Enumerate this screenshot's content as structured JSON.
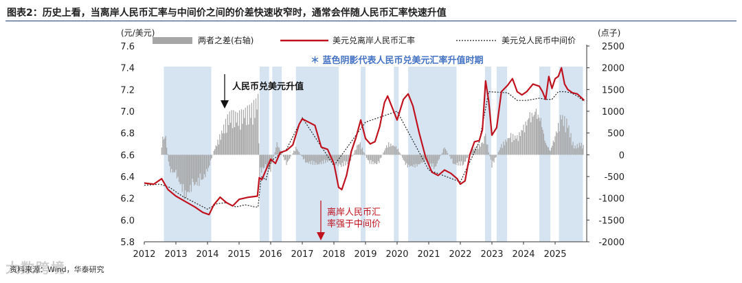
{
  "title": "图表2：历史上看，当离岸人民币汇率与中间价之间的价差快速收窄时，通常会伴随人民币汇率快速升值",
  "source": "资料来源：Wind，华泰研究",
  "watermark": "大数跨境",
  "colors": {
    "diff": "#a6a6a6",
    "offshore": "#c0121e",
    "central": "#222222",
    "shade": "#d6e4f2",
    "note": "#4472c4",
    "annot_red": "#c0121e"
  },
  "chart_data": {
    "type": "line",
    "title": "图表2：历史上看，当离岸人民币汇率与中间价之间的价差快速收窄时，通常会伴随人民币汇率快速升值",
    "ylabel_left": "(元/美元)",
    "ylabel_right": "(点子)",
    "ylim_left": [
      5.8,
      7.6
    ],
    "ylim_right": [
      -2000,
      2500
    ],
    "x_range": [
      2012,
      2026
    ],
    "xticks": [
      "2012",
      "2013",
      "2014",
      "2015",
      "2016",
      "2017",
      "2018",
      "2019",
      "2020",
      "2021",
      "2022",
      "2023",
      "2024",
      "2025"
    ],
    "yticks_left": [
      "7.6",
      "7.4",
      "7.2",
      "7.0",
      "6.8",
      "6.6",
      "6.4",
      "6.2",
      "6.0",
      "5.8"
    ],
    "yticks_right": [
      "2500",
      "2000",
      "1500",
      "1000",
      "500",
      "0",
      "-500",
      "-1000",
      "-1500",
      "-2000"
    ],
    "legend": [
      "两者之差(右轴)",
      "美元兑离岸人民币汇率",
      "美元兑人民币中间价"
    ],
    "note": "＊ 蓝色阴影代表人民币兑美元汇率升值时期",
    "annotations": [
      {
        "text": "人民币兑美元升值",
        "x": 2014.55,
        "y": 7.05,
        "color": "black"
      },
      {
        "text": "离岸人民币汇",
        "text2": "率强于中间价",
        "x": 2017.72,
        "y": 5.82,
        "color": "red"
      }
    ],
    "shaded_periods": [
      [
        2012.62,
        2014.12
      ],
      [
        2015.65,
        2015.95
      ],
      [
        2016.05,
        2016.35
      ],
      [
        2016.8,
        2018.15
      ],
      [
        2018.85,
        2019.0
      ],
      [
        2019.9,
        2020.05
      ],
      [
        2020.35,
        2021.88
      ],
      [
        2022.78,
        2022.98
      ],
      [
        2023.15,
        2023.48
      ],
      [
        2024.5,
        2024.85
      ],
      [
        2025.12,
        2025.88
      ]
    ],
    "series": [
      {
        "name": "美元兑离岸人民币汇率",
        "x": [
          2012.0,
          2012.3,
          2012.55,
          2012.75,
          2013.0,
          2013.3,
          2013.6,
          2013.85,
          2014.05,
          2014.2,
          2014.4,
          2014.6,
          2014.8,
          2015.0,
          2015.3,
          2015.58,
          2015.64,
          2015.72,
          2015.85,
          2016.0,
          2016.15,
          2016.3,
          2016.5,
          2016.7,
          2016.9,
          2017.0,
          2017.2,
          2017.4,
          2017.6,
          2017.8,
          2018.0,
          2018.15,
          2018.25,
          2018.4,
          2018.55,
          2018.7,
          2018.85,
          2019.0,
          2019.15,
          2019.3,
          2019.45,
          2019.6,
          2019.7,
          2019.85,
          2020.0,
          2020.2,
          2020.35,
          2020.5,
          2020.7,
          2020.9,
          2021.1,
          2021.3,
          2021.5,
          2021.7,
          2021.9,
          2022.0,
          2022.15,
          2022.3,
          2022.45,
          2022.6,
          2022.7,
          2022.8,
          2022.9,
          2023.0,
          2023.15,
          2023.3,
          2023.5,
          2023.65,
          2023.8,
          2023.95,
          2024.1,
          2024.3,
          2024.5,
          2024.6,
          2024.7,
          2024.8,
          2024.9,
          2025.0,
          2025.1,
          2025.2,
          2025.3,
          2025.4,
          2025.55,
          2025.7,
          2025.85,
          2025.92
        ],
        "values": [
          6.34,
          6.33,
          6.38,
          6.28,
          6.22,
          6.17,
          6.12,
          6.07,
          6.05,
          6.14,
          6.21,
          6.16,
          6.13,
          6.19,
          6.21,
          6.22,
          6.39,
          6.37,
          6.46,
          6.56,
          6.52,
          6.62,
          6.64,
          6.69,
          6.88,
          6.93,
          6.9,
          6.87,
          6.67,
          6.65,
          6.52,
          6.3,
          6.28,
          6.41,
          6.63,
          6.76,
          6.92,
          6.75,
          6.7,
          6.72,
          6.86,
          7.08,
          7.14,
          7.03,
          6.92,
          7.11,
          7.16,
          7.05,
          6.8,
          6.58,
          6.44,
          6.41,
          6.46,
          6.43,
          6.38,
          6.33,
          6.36,
          6.6,
          6.72,
          6.73,
          6.83,
          7.28,
          7.09,
          6.78,
          6.85,
          7.18,
          7.24,
          7.3,
          7.18,
          7.15,
          7.18,
          7.25,
          7.23,
          7.18,
          7.11,
          7.32,
          7.21,
          7.3,
          7.32,
          7.4,
          7.25,
          7.2,
          7.17,
          7.16,
          7.12,
          7.1
        ]
      },
      {
        "name": "美元兑人民币中间价",
        "x": [
          2012.0,
          2012.5,
          2012.8,
          2013.2,
          2013.6,
          2014.0,
          2014.3,
          2014.6,
          2014.9,
          2015.2,
          2015.5,
          2015.6,
          2015.64,
          2015.7,
          2015.85,
          2016.0,
          2016.5,
          2017.0,
          2018.0,
          2019.0,
          2020.0,
          2021.0,
          2022.0,
          2022.6,
          2022.9,
          2023.5,
          2023.8,
          2024.1,
          2024.5,
          2024.7,
          2024.9,
          2025.1,
          2025.3,
          2025.5,
          2025.7,
          2025.92
        ],
        "values": [
          6.32,
          6.33,
          6.3,
          6.22,
          6.16,
          6.1,
          6.15,
          6.16,
          6.12,
          6.14,
          6.12,
          6.12,
          6.23,
          6.4,
          6.37,
          6.54,
          6.65,
          6.94,
          6.5,
          6.9,
          7.0,
          6.46,
          6.35,
          6.72,
          7.18,
          7.17,
          7.1,
          7.1,
          7.12,
          7.11,
          7.11,
          7.18,
          7.18,
          7.17,
          7.14,
          7.09
        ]
      },
      {
        "name": "两者之差(右轴)",
        "x": [
          2012.55,
          2012.65,
          2012.8,
          2013.0,
          2013.3,
          2013.55,
          2013.8,
          2014.0,
          2014.2,
          2014.45,
          2014.7,
          2014.95,
          2015.2,
          2015.4,
          2015.6,
          2015.65,
          2015.8,
          2016.0,
          2016.2,
          2016.5,
          2016.8,
          2017.1,
          2017.5,
          2017.9,
          2018.2,
          2018.5,
          2018.8,
          2019.1,
          2019.4,
          2019.7,
          2020.0,
          2020.3,
          2020.6,
          2020.9,
          2021.2,
          2021.5,
          2021.8,
          2022.1,
          2022.4,
          2022.7,
          2022.8,
          2023.0,
          2023.3,
          2023.6,
          2023.8,
          2024.0,
          2024.2,
          2024.4,
          2024.55,
          2024.7,
          2024.85,
          2025.0,
          2025.2,
          2025.4,
          2025.6,
          2025.8,
          2025.92
        ],
        "values": [
          300,
          650,
          -400,
          -500,
          -1100,
          -800,
          -700,
          -450,
          100,
          600,
          1050,
          1000,
          1100,
          1200,
          1400,
          -500,
          -300,
          -400,
          300,
          -250,
          200,
          -200,
          -250,
          -150,
          -300,
          -200,
          350,
          -200,
          -250,
          300,
          200,
          -300,
          -300,
          -150,
          -350,
          200,
          -250,
          -250,
          150,
          300,
          500,
          -300,
          250,
          500,
          450,
          700,
          1000,
          1100,
          900,
          300,
          100,
          500,
          1000,
          800,
          200,
          300,
          200
        ]
      }
    ]
  }
}
